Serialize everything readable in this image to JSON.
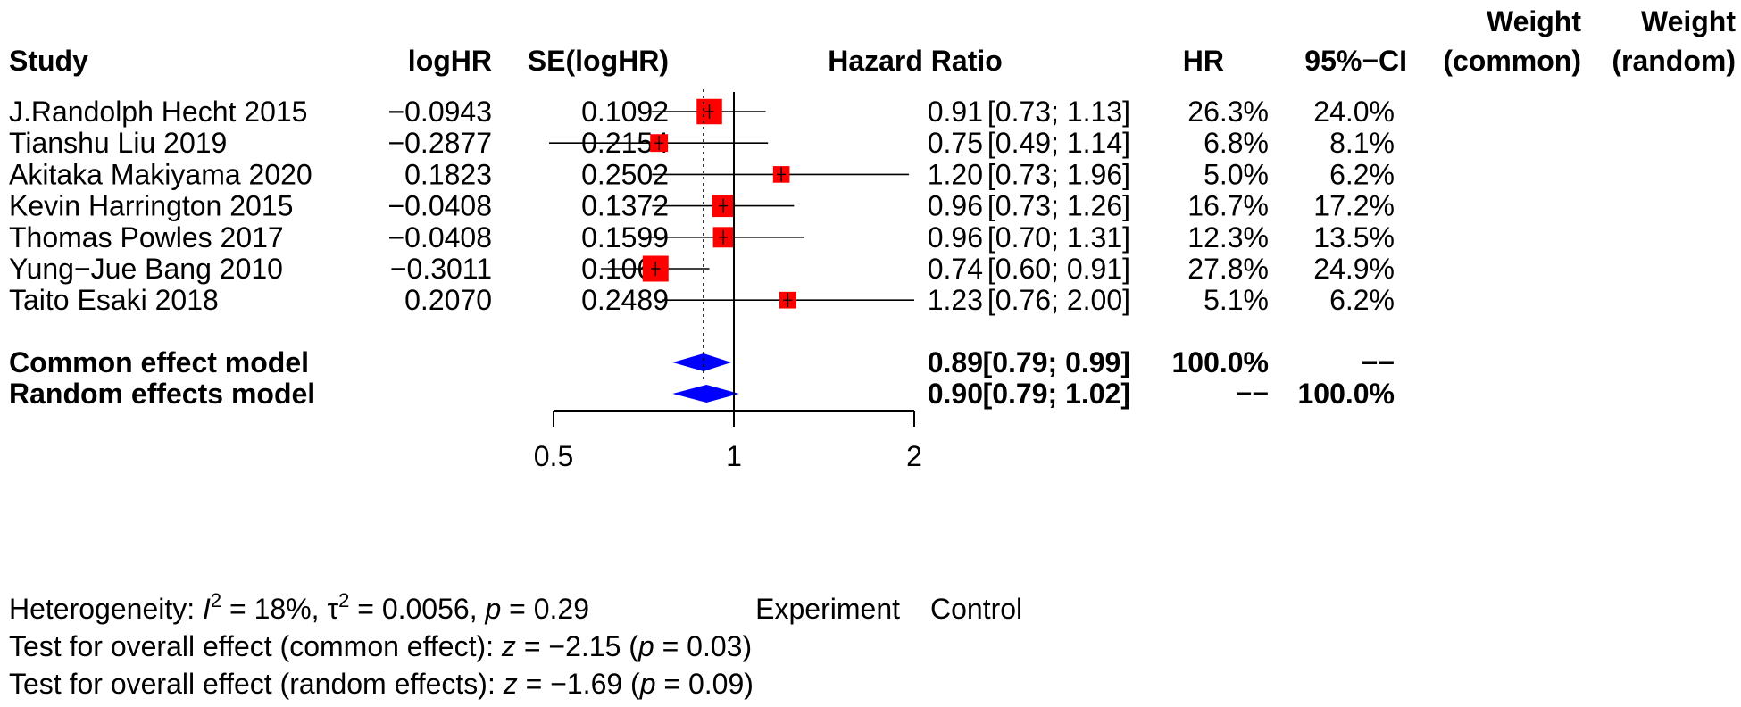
{
  "chart_data": {
    "type": "forest",
    "columns": {
      "study": "Study",
      "loghr": "logHR",
      "se": "SE(logHR)",
      "plot": "Hazard Ratio",
      "hr": "HR",
      "ci": "95%−CI",
      "w_common_top": "Weight",
      "w_common_bottom": "(common)",
      "w_random_top": "Weight",
      "w_random_bottom": "(random)"
    },
    "studies": [
      {
        "name": "J.Randolph Hecht 2015",
        "loghr": "−0.0943",
        "se": "0.1092",
        "hr": "0.91",
        "ci": "[0.73; 1.13]",
        "w_common": "26.3%",
        "w_random": "24.0%",
        "hr_value": 0.91,
        "lower": 0.73,
        "upper": 1.13,
        "weight": 26.3
      },
      {
        "name": "Tianshu Liu 2019",
        "loghr": "−0.2877",
        "se": "0.2154",
        "hr": "0.75",
        "ci": "[0.49; 1.14]",
        "w_common": "6.8%",
        "w_random": "8.1%",
        "hr_value": 0.75,
        "lower": 0.49,
        "upper": 1.14,
        "weight": 6.8
      },
      {
        "name": "Akitaka Makiyama 2020",
        "loghr": "0.1823",
        "se": "0.2502",
        "hr": "1.20",
        "ci": "[0.73; 1.96]",
        "w_common": "5.0%",
        "w_random": "6.2%",
        "hr_value": 1.2,
        "lower": 0.73,
        "upper": 1.96,
        "weight": 5.0
      },
      {
        "name": "Kevin Harrington 2015",
        "loghr": "−0.0408",
        "se": "0.1372",
        "hr": "0.96",
        "ci": "[0.73; 1.26]",
        "w_common": "16.7%",
        "w_random": "17.2%",
        "hr_value": 0.96,
        "lower": 0.73,
        "upper": 1.26,
        "weight": 16.7
      },
      {
        "name": "Thomas Powles 2017",
        "loghr": "−0.0408",
        "se": "0.1599",
        "hr": "0.96",
        "ci": "[0.70; 1.31]",
        "w_common": "12.3%",
        "w_random": "13.5%",
        "hr_value": 0.96,
        "lower": 0.7,
        "upper": 1.31,
        "weight": 12.3
      },
      {
        "name": "Yung−Jue Bang 2010",
        "loghr": "−0.3011",
        "se": "0.1063",
        "hr": "0.74",
        "ci": "[0.60; 0.91]",
        "w_common": "27.8%",
        "w_random": "24.9%",
        "hr_value": 0.74,
        "lower": 0.6,
        "upper": 0.91,
        "weight": 27.8
      },
      {
        "name": "Taito Esaki 2018",
        "loghr": "0.2070",
        "se": "0.2489",
        "hr": "1.23",
        "ci": "[0.76; 2.00]",
        "w_common": "5.1%",
        "w_random": "6.2%",
        "hr_value": 1.23,
        "lower": 0.76,
        "upper": 2.0,
        "weight": 5.1
      }
    ],
    "models": [
      {
        "name": "Common effect model",
        "hr": "0.89",
        "ci": "[0.79; 0.99]",
        "w_common": "100.0%",
        "w_random": "−−",
        "hr_value": 0.89,
        "lower": 0.79,
        "upper": 0.99
      },
      {
        "name": "Random effects model",
        "hr": "0.90",
        "ci": "[0.79; 1.02]",
        "w_common": "−−",
        "w_random": "100.0%",
        "hr_value": 0.9,
        "lower": 0.79,
        "upper": 1.02
      }
    ],
    "axis": {
      "scale": "log",
      "xlim": [
        0.5,
        2
      ],
      "ticks": [
        "0.5",
        "1",
        "2"
      ],
      "tick_values": [
        0.5,
        1,
        2
      ],
      "null_value": 1,
      "left_label": "Experiment",
      "right_label": "Control"
    },
    "footer": {
      "heterogeneity_prefix": "Heterogeneity: ",
      "i2_symbol": "I",
      "i2_sup": "2",
      "i2_value": " = 18%, ",
      "tau_symbol": "τ",
      "tau_sup": "2",
      "tau_value": " = 0.0056, ",
      "p_symbol": "p",
      "p_value": " = 0.29",
      "test_common_prefix": "Test for overall effect (common effect): ",
      "test_common_z": "z",
      "test_common_z_value": " = −2.15 (",
      "test_common_p": "p",
      "test_common_p_value": " = 0.03)",
      "test_random_prefix": "Test for overall effect (random effects): ",
      "test_random_z": "z",
      "test_random_z_value": " = −1.69 (",
      "test_random_p": "p",
      "test_random_p_value": " = 0.09)"
    },
    "colors": {
      "square": "#ff0000",
      "diamond": "#0000ff",
      "line": "#000000"
    }
  }
}
